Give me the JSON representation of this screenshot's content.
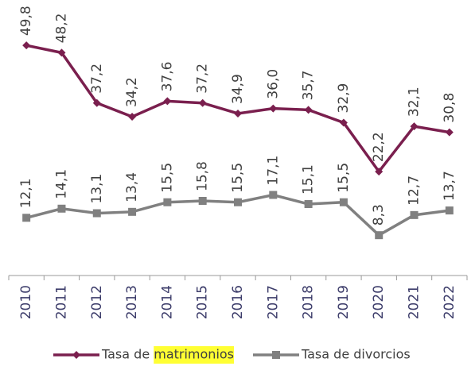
{
  "chart_data": {
    "type": "line",
    "categories": [
      "2010",
      "2011",
      "2012",
      "2013",
      "2014",
      "2015",
      "2016",
      "2017",
      "2018",
      "2019",
      "2020",
      "2021",
      "2022"
    ],
    "series": [
      {
        "name": "Tasa de matrimonios",
        "color": "#7a1f4e",
        "marker": "diamond",
        "values": [
          49.8,
          48.2,
          37.2,
          34.2,
          37.6,
          37.2,
          34.9,
          36.0,
          35.7,
          32.9,
          22.2,
          32.1,
          30.8
        ],
        "value_labels": [
          "49,8",
          "48,2",
          "37,2",
          "34,2",
          "37,6",
          "37,2",
          "34,9",
          "36,0",
          "35,7",
          "32,9",
          "22,2",
          "32,1",
          "30,8"
        ]
      },
      {
        "name": "Tasa de divorcios",
        "color": "#808080",
        "marker": "square",
        "values": [
          12.1,
          14.1,
          13.1,
          13.4,
          15.5,
          15.8,
          15.5,
          17.1,
          15.1,
          15.5,
          8.3,
          12.7,
          13.7
        ],
        "value_labels": [
          "12,1",
          "14,1",
          "13,1",
          "13,4",
          "15,5",
          "15,8",
          "15,5",
          "17,1",
          "15,1",
          "15,5",
          "8,3",
          "12,7",
          "13,7"
        ]
      }
    ],
    "legend": "bottom"
  }
}
